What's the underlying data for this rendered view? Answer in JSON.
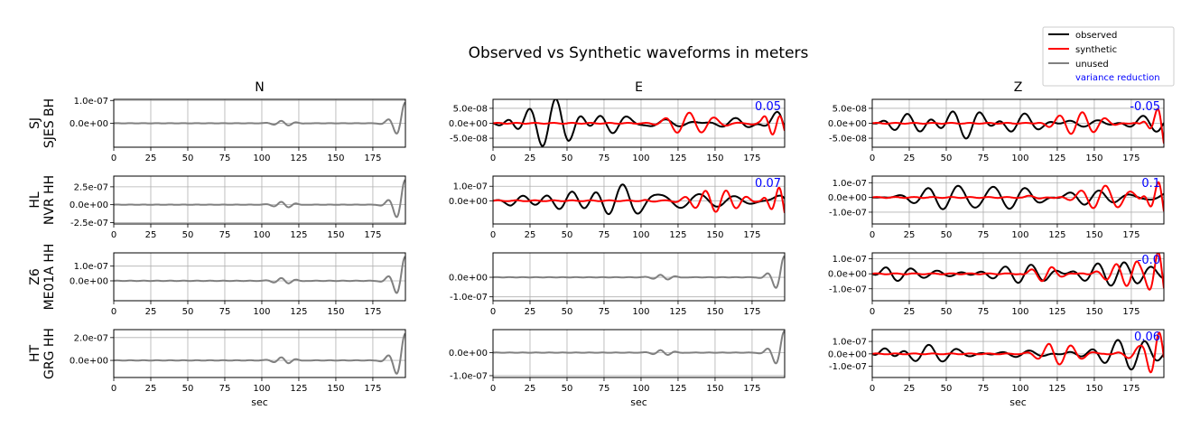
{
  "chart_data": {
    "type": "line",
    "title": "Observed vs Synthetic waveforms in meters",
    "legend": {
      "placement": "top-right",
      "entries": [
        {
          "label": "observed",
          "color": "#000000"
        },
        {
          "label": "synthetic",
          "color": "#ff0000"
        },
        {
          "label": "unused",
          "color": "#808080"
        },
        {
          "label": "variance reduction",
          "color": "#0000ff"
        }
      ]
    },
    "grid": true,
    "columns": [
      "N",
      "E",
      "Z"
    ],
    "rows": [
      {
        "label1": "SJ",
        "label2": "SJES BH"
      },
      {
        "label1": "HL",
        "label2": "NVR HH"
      },
      {
        "label1": "Z6",
        "label2": "ME01A HH"
      },
      {
        "label1": "HT",
        "label2": "GRG HH"
      }
    ],
    "xlabel": "sec",
    "xlim": [
      0,
      197
    ],
    "xticks": [
      "0",
      "25",
      "50",
      "75",
      "100",
      "125",
      "150",
      "175"
    ],
    "panels": [
      {
        "row": 0,
        "col": 0,
        "status": "unused",
        "ylim": [
          -1.05e-07,
          1.05e-07
        ],
        "yticks": [
          {
            "v": 1e-07,
            "t": "1.0e-07"
          },
          {
            "v": 0,
            "t": "0.0e+00"
          }
        ]
      },
      {
        "row": 0,
        "col": 1,
        "status": "used",
        "vr": "0.05",
        "ylim": [
          -8e-08,
          8e-08
        ],
        "yticks": [
          {
            "v": 5e-08,
            "t": "5.0e-08"
          },
          {
            "v": 0,
            "t": "0.0e+00"
          },
          {
            "v": -5e-08,
            "t": "-5.0e-08"
          }
        ]
      },
      {
        "row": 0,
        "col": 2,
        "status": "used",
        "vr": "-0.05",
        "ylim": [
          -8e-08,
          8e-08
        ],
        "yticks": [
          {
            "v": 5e-08,
            "t": "5.0e-08"
          },
          {
            "v": 0,
            "t": "0.0e+00"
          },
          {
            "v": -5e-08,
            "t": "-5.0e-08"
          }
        ]
      },
      {
        "row": 1,
        "col": 0,
        "status": "unused",
        "ylim": [
          -2.7e-07,
          4e-07
        ],
        "yticks": [
          {
            "v": 2.5e-07,
            "t": "2.5e-07"
          },
          {
            "v": 0,
            "t": "0.0e+00"
          },
          {
            "v": -2.5e-07,
            "t": "-2.5e-07"
          }
        ]
      },
      {
        "row": 1,
        "col": 1,
        "status": "used",
        "vr": "0.07",
        "ylim": [
          -1.6e-07,
          1.7e-07
        ],
        "yticks": [
          {
            "v": 1e-07,
            "t": "1.0e-07"
          },
          {
            "v": 0,
            "t": "0.0e+00"
          }
        ]
      },
      {
        "row": 1,
        "col": 2,
        "status": "used",
        "vr": "0.1",
        "ylim": [
          -1.8e-07,
          1.45e-07
        ],
        "yticks": [
          {
            "v": 1e-07,
            "t": "1.0e-07"
          },
          {
            "v": 0,
            "t": "0.0e+00"
          },
          {
            "v": -1e-07,
            "t": "-1.0e-07"
          }
        ]
      },
      {
        "row": 2,
        "col": 0,
        "status": "unused",
        "ylim": [
          -1.35e-07,
          1.9e-07
        ],
        "yticks": [
          {
            "v": 1e-07,
            "t": "1.0e-07"
          },
          {
            "v": 0,
            "t": "0.0e+00"
          }
        ]
      },
      {
        "row": 2,
        "col": 1,
        "status": "unused",
        "ylim": [
          -1.2e-07,
          1.25e-07
        ],
        "yticks": [
          {
            "v": 0,
            "t": "0.0e+00"
          },
          {
            "v": -1e-07,
            "t": "-1.0e-07"
          }
        ]
      },
      {
        "row": 2,
        "col": 2,
        "status": "used",
        "vr": "-0.0",
        "ylim": [
          -1.8e-07,
          1.4e-07
        ],
        "yticks": [
          {
            "v": 1e-07,
            "t": "1.0e-07"
          },
          {
            "v": 0,
            "t": "0.0e+00"
          },
          {
            "v": -1e-07,
            "t": "-1.0e-07"
          }
        ]
      },
      {
        "row": 3,
        "col": 0,
        "status": "unused",
        "ylim": [
          -1.5e-07,
          2.7e-07
        ],
        "yticks": [
          {
            "v": 2e-07,
            "t": "2.0e-07"
          },
          {
            "v": 0,
            "t": "0.0e+00"
          }
        ]
      },
      {
        "row": 3,
        "col": 1,
        "status": "unused",
        "ylim": [
          -1.08e-07,
          1e-07
        ],
        "yticks": [
          {
            "v": 0,
            "t": "0.0e+00"
          },
          {
            "v": -1e-07,
            "t": "-1.0e-07"
          }
        ]
      },
      {
        "row": 3,
        "col": 2,
        "status": "used",
        "vr": "0.06",
        "ylim": [
          -1.9e-07,
          1.95e-07
        ],
        "yticks": [
          {
            "v": 1e-07,
            "t": "1.0e-07"
          },
          {
            "v": 0,
            "t": "0.0e+00"
          },
          {
            "v": -1e-07,
            "t": "-1.0e-07"
          }
        ]
      }
    ]
  }
}
